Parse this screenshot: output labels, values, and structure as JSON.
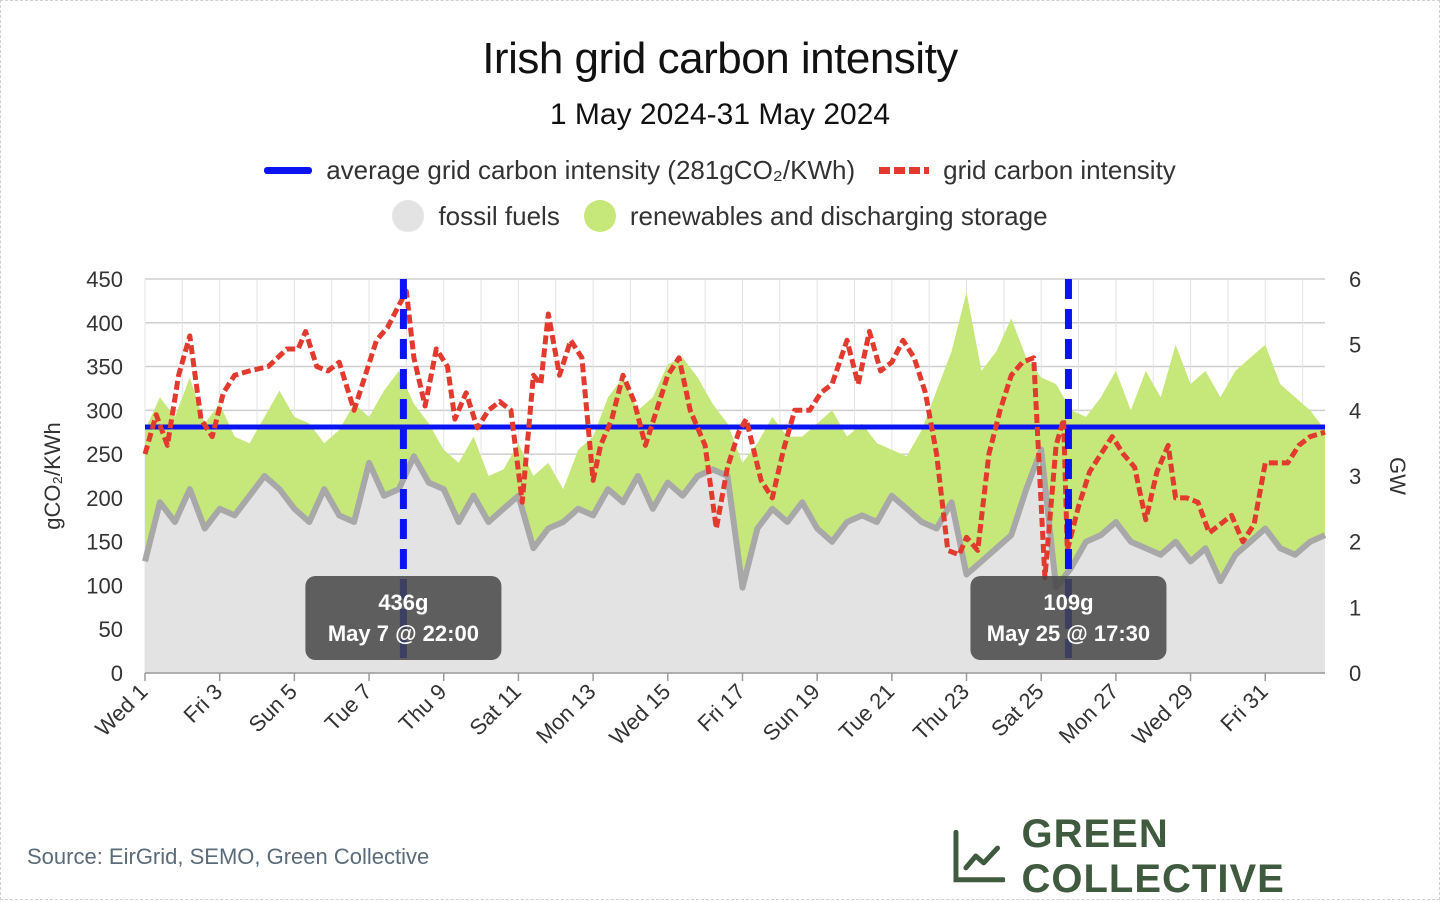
{
  "chart_data": {
    "type": "area",
    "title": "Irish grid carbon intensity",
    "subtitle": "1 May 2024-31 May 2024",
    "ylabel_left": "gCO₂/KWh",
    "ylabel_right": "GW",
    "ylim_left": [
      0,
      450
    ],
    "ylim_right": [
      0,
      6
    ],
    "yticks_left": [
      "0",
      "50",
      "100",
      "150",
      "200",
      "250",
      "300",
      "350",
      "400",
      "450"
    ],
    "yticks_right": [
      "0",
      "1",
      "2",
      "3",
      "4",
      "5",
      "6"
    ],
    "x_tick_labels": [
      "Wed 1",
      "Fri 3",
      "Sun 5",
      "Tue 7",
      "Thu 9",
      "Sat 11",
      "Mon 13",
      "Wed 15",
      "Fri 17",
      "Sun 19",
      "Tue 21",
      "Thu 23",
      "Sat 25",
      "Mon 27",
      "Wed 29",
      "Fri 31"
    ],
    "x_tick_days": [
      1,
      3,
      5,
      7,
      9,
      11,
      13,
      15,
      17,
      19,
      21,
      23,
      25,
      27,
      29,
      31
    ],
    "x_range_days": [
      1,
      32.6
    ],
    "legend": [
      {
        "label": "average grid carbon intensity (281gCO₂/KWh)",
        "color": "#0a14f0",
        "style": "solid"
      },
      {
        "label": "grid carbon intensity",
        "color": "#e23a2e",
        "style": "dashed"
      },
      {
        "label": "fossil fuels",
        "color": "#e0e0e0",
        "style": "area"
      },
      {
        "label": "renewables and discharging storage",
        "color": "#c6e87a",
        "style": "area"
      }
    ],
    "average_intensity": 281,
    "series": [
      {
        "name": "grid carbon intensity",
        "unit": "gCO2/KWh",
        "x_days": [
          1.0,
          1.3,
          1.6,
          1.9,
          2.2,
          2.5,
          2.8,
          3.1,
          3.4,
          3.8,
          4.3,
          4.8,
          5.1,
          5.3,
          5.6,
          5.9,
          6.2,
          6.6,
          6.9,
          7.2,
          7.5,
          7.8,
          8.0,
          8.2,
          8.5,
          8.8,
          9.1,
          9.3,
          9.6,
          9.9,
          10.2,
          10.5,
          10.8,
          11.1,
          11.4,
          11.6,
          11.8,
          12.1,
          12.4,
          12.7,
          13.0,
          13.2,
          13.5,
          13.8,
          14.1,
          14.4,
          14.7,
          15.0,
          15.3,
          15.6,
          16.0,
          16.3,
          16.6,
          16.9,
          17.1,
          17.5,
          17.8,
          18.1,
          18.4,
          18.8,
          19.1,
          19.4,
          19.8,
          20.1,
          20.4,
          20.7,
          21.0,
          21.3,
          21.6,
          21.9,
          22.2,
          22.5,
          22.8,
          23.0,
          23.3,
          23.6,
          23.9,
          24.2,
          24.5,
          24.8,
          25.1,
          25.4,
          25.6,
          25.7,
          26.0,
          26.3,
          26.6,
          26.9,
          27.2,
          27.5,
          27.8,
          28.1,
          28.4,
          28.6,
          28.9,
          29.2,
          29.5,
          29.8,
          30.1,
          30.4,
          30.7,
          31.0,
          31.3,
          31.6,
          31.9,
          32.2,
          32.6
        ],
        "values": [
          250,
          295,
          260,
          340,
          385,
          290,
          270,
          320,
          340,
          345,
          350,
          370,
          370,
          390,
          350,
          345,
          355,
          300,
          340,
          380,
          395,
          420,
          436,
          360,
          305,
          370,
          350,
          290,
          320,
          280,
          300,
          310,
          300,
          195,
          340,
          330,
          410,
          340,
          380,
          360,
          220,
          260,
          290,
          340,
          310,
          260,
          300,
          340,
          360,
          300,
          260,
          165,
          235,
          275,
          290,
          220,
          200,
          255,
          300,
          300,
          320,
          330,
          380,
          330,
          390,
          345,
          355,
          380,
          360,
          320,
          250,
          140,
          135,
          155,
          140,
          250,
          300,
          340,
          355,
          360,
          109,
          260,
          290,
          140,
          190,
          230,
          250,
          270,
          250,
          235,
          175,
          230,
          260,
          200,
          200,
          195,
          160,
          170,
          180,
          150,
          170,
          240,
          240,
          240,
          260,
          270,
          275
        ]
      },
      {
        "name": "renewables and discharging storage",
        "unit": "GW",
        "x_days": [
          1.0,
          1.4,
          1.8,
          2.2,
          2.6,
          3.0,
          3.4,
          3.8,
          4.2,
          4.6,
          5.0,
          5.4,
          5.8,
          6.2,
          6.6,
          7.0,
          7.4,
          7.8,
          8.2,
          8.6,
          9.0,
          9.4,
          9.8,
          10.2,
          10.6,
          11.0,
          11.4,
          11.8,
          12.2,
          12.6,
          13.0,
          13.4,
          13.8,
          14.2,
          14.6,
          15.0,
          15.4,
          15.8,
          16.2,
          16.6,
          17.0,
          17.4,
          17.8,
          18.2,
          18.6,
          19.0,
          19.4,
          19.8,
          20.2,
          20.6,
          21.0,
          21.4,
          21.8,
          22.2,
          22.6,
          23.0,
          23.4,
          23.8,
          24.2,
          24.6,
          25.0,
          25.4,
          25.8,
          26.2,
          26.6,
          27.0,
          27.4,
          27.8,
          28.2,
          28.6,
          29.0,
          29.4,
          29.8,
          30.2,
          30.6,
          31.0,
          31.4,
          31.8,
          32.2,
          32.6
        ],
        "values": [
          3.7,
          4.2,
          3.9,
          4.5,
          3.8,
          4.1,
          3.6,
          3.5,
          3.9,
          4.3,
          3.9,
          3.8,
          3.5,
          3.7,
          4.1,
          3.9,
          4.3,
          4.6,
          4.1,
          3.8,
          3.4,
          3.2,
          3.6,
          3.0,
          3.1,
          3.5,
          3.0,
          3.2,
          2.8,
          3.4,
          3.6,
          4.2,
          4.5,
          4.0,
          4.2,
          4.7,
          4.8,
          4.5,
          4.1,
          3.8,
          3.2,
          3.5,
          3.9,
          3.6,
          3.6,
          3.8,
          4.0,
          3.6,
          3.8,
          3.5,
          3.4,
          3.3,
          3.7,
          4.3,
          4.9,
          5.8,
          4.6,
          4.9,
          5.4,
          4.8,
          4.5,
          4.4,
          4.0,
          3.9,
          4.2,
          4.6,
          4.0,
          4.6,
          4.2,
          5.0,
          4.4,
          4.6,
          4.2,
          4.6,
          4.8,
          5.0,
          4.4,
          4.2,
          4.0,
          3.7
        ]
      },
      {
        "name": "fossil fuels",
        "unit": "GW",
        "x_days": [
          1.0,
          1.4,
          1.8,
          2.2,
          2.6,
          3.0,
          3.4,
          3.8,
          4.2,
          4.6,
          5.0,
          5.4,
          5.8,
          6.2,
          6.6,
          7.0,
          7.4,
          7.8,
          8.2,
          8.6,
          9.0,
          9.4,
          9.8,
          10.2,
          10.6,
          11.0,
          11.4,
          11.8,
          12.2,
          12.6,
          13.0,
          13.4,
          13.8,
          14.2,
          14.6,
          15.0,
          15.4,
          15.8,
          16.2,
          16.6,
          17.0,
          17.4,
          17.8,
          18.2,
          18.6,
          19.0,
          19.4,
          19.8,
          20.2,
          20.6,
          21.0,
          21.4,
          21.8,
          22.2,
          22.6,
          23.0,
          23.4,
          23.8,
          24.2,
          24.6,
          25.0,
          25.4,
          25.8,
          26.2,
          26.6,
          27.0,
          27.4,
          27.8,
          28.2,
          28.6,
          29.0,
          29.4,
          29.8,
          30.2,
          30.6,
          31.0,
          31.4,
          31.8,
          32.2,
          32.6
        ],
        "values": [
          1.7,
          2.6,
          2.3,
          2.8,
          2.2,
          2.5,
          2.4,
          2.7,
          3.0,
          2.8,
          2.5,
          2.3,
          2.8,
          2.4,
          2.3,
          3.2,
          2.7,
          2.8,
          3.3,
          2.9,
          2.8,
          2.3,
          2.7,
          2.3,
          2.5,
          2.7,
          1.9,
          2.2,
          2.3,
          2.5,
          2.4,
          2.8,
          2.6,
          3.0,
          2.5,
          2.9,
          2.7,
          3.0,
          3.1,
          3.0,
          1.3,
          2.2,
          2.5,
          2.3,
          2.6,
          2.2,
          2.0,
          2.3,
          2.4,
          2.3,
          2.7,
          2.5,
          2.3,
          2.2,
          2.6,
          1.5,
          1.7,
          1.9,
          2.1,
          2.8,
          3.4,
          1.3,
          1.6,
          2.0,
          2.1,
          2.3,
          2.0,
          1.9,
          1.8,
          2.0,
          1.7,
          1.9,
          1.4,
          1.8,
          2.0,
          2.2,
          1.9,
          1.8,
          2.0,
          2.1
        ]
      }
    ],
    "annotations": [
      {
        "label": "436g",
        "sublabel": "May 7 @ 22:00",
        "x_day": 7.92,
        "value": 436
      },
      {
        "label": "109g",
        "sublabel": "May 25 @ 17:30",
        "x_day": 25.73,
        "value": 109
      }
    ]
  },
  "source": "Source: EirGrid, SEMO, Green Collective",
  "brand": "GREEN COLLECTIVE",
  "brand_icon": "line-chart-logo-icon"
}
